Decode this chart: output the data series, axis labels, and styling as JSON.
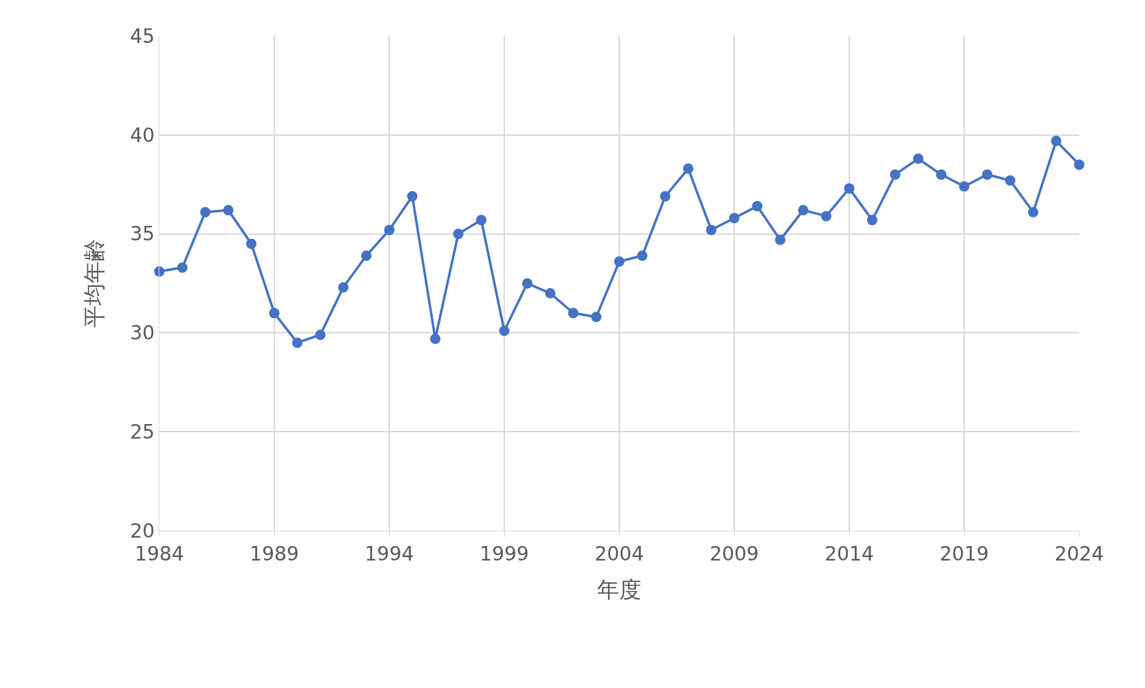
{
  "chart_data": {
    "type": "line",
    "xlabel": "年度",
    "ylabel": "平均年齢",
    "x": [
      1984,
      1985,
      1986,
      1987,
      1988,
      1989,
      1990,
      1991,
      1992,
      1993,
      1994,
      1995,
      1996,
      1997,
      1998,
      1999,
      2000,
      2001,
      2002,
      2003,
      2004,
      2005,
      2006,
      2007,
      2008,
      2009,
      2010,
      2011,
      2012,
      2013,
      2014,
      2015,
      2016,
      2017,
      2018,
      2019,
      2020,
      2021,
      2022,
      2023,
      2024
    ],
    "series": [
      {
        "color": "#4472c4",
        "values": [
          33.1,
          33.3,
          36.1,
          36.2,
          34.5,
          31.0,
          29.5,
          29.9,
          32.3,
          33.9,
          35.2,
          36.9,
          29.7,
          35.0,
          35.7,
          30.1,
          32.5,
          32.0,
          31.0,
          30.8,
          33.6,
          33.9,
          36.9,
          38.3,
          35.2,
          35.8,
          36.4,
          34.7,
          36.2,
          35.9,
          37.3,
          35.7,
          38.0,
          38.8,
          38.0,
          37.4,
          38.0,
          37.7,
          36.1,
          39.7,
          38.5
        ]
      }
    ],
    "xlim": [
      1984,
      2024
    ],
    "xticks": [
      1984,
      1989,
      1994,
      1999,
      2004,
      2009,
      2014,
      2019,
      2024
    ],
    "ylim": [
      20,
      45
    ],
    "yticks": [
      20,
      25,
      30,
      35,
      40,
      45
    ],
    "grid": true,
    "legend": false,
    "marker": "circle",
    "line_style": "solid"
  }
}
